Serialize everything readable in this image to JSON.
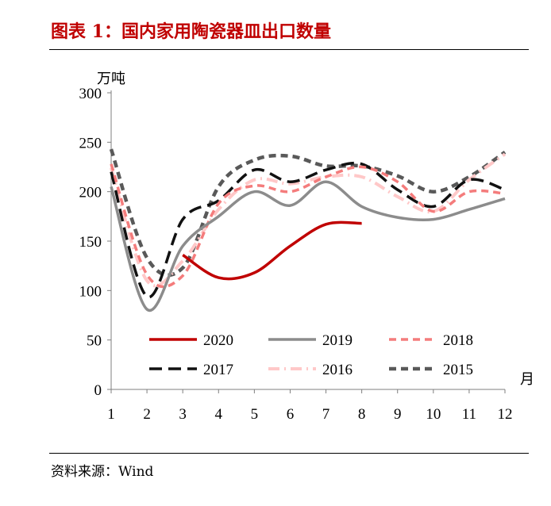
{
  "header": {
    "title": "图表 1：国内家用陶瓷器皿出口数量"
  },
  "footer": {
    "source": "资料来源：Wind"
  },
  "chart_data": {
    "type": "line",
    "title": "图表 1：国内家用陶瓷器皿出口数量",
    "ylabel": "万吨",
    "xlabel": "月",
    "ylim": [
      0,
      300
    ],
    "yticks": [
      0,
      50,
      100,
      150,
      200,
      250,
      300
    ],
    "x": [
      1,
      2,
      3,
      4,
      5,
      6,
      7,
      8,
      9,
      10,
      11,
      12
    ],
    "legend_position": "bottom",
    "series": [
      {
        "name": "2020",
        "color": "#c00000",
        "dash": "solid",
        "width": 3.5,
        "values": [
          null,
          null,
          136,
          113,
          118,
          145,
          167,
          168,
          null,
          null,
          null,
          null
        ]
      },
      {
        "name": "2019",
        "color": "#8c8c8c",
        "dash": "solid",
        "width": 3.5,
        "values": [
          205,
          81,
          145,
          175,
          200,
          186,
          210,
          185,
          174,
          172,
          182,
          193
        ]
      },
      {
        "name": "2018",
        "color": "#f47c7c",
        "dash": "dashed",
        "width": 3.5,
        "values": [
          228,
          116,
          115,
          188,
          206,
          200,
          215,
          225,
          210,
          180,
          200,
          198
        ]
      },
      {
        "name": "2017",
        "color": "#111111",
        "dash": "longdash",
        "width": 3.5,
        "values": [
          220,
          94,
          172,
          191,
          222,
          210,
          222,
          228,
          202,
          185,
          212,
          202
        ]
      },
      {
        "name": "2016",
        "color": "#ffc8c8",
        "dash": "dashdot",
        "width": 4,
        "values": [
          224,
          110,
          130,
          182,
          212,
          208,
          215,
          215,
          195,
          180,
          212,
          238
        ]
      },
      {
        "name": "2015",
        "color": "#595959",
        "dash": "dashed",
        "width": 4.5,
        "values": [
          243,
          133,
          123,
          205,
          232,
          236,
          226,
          226,
          216,
          200,
          215,
          240
        ]
      }
    ]
  }
}
